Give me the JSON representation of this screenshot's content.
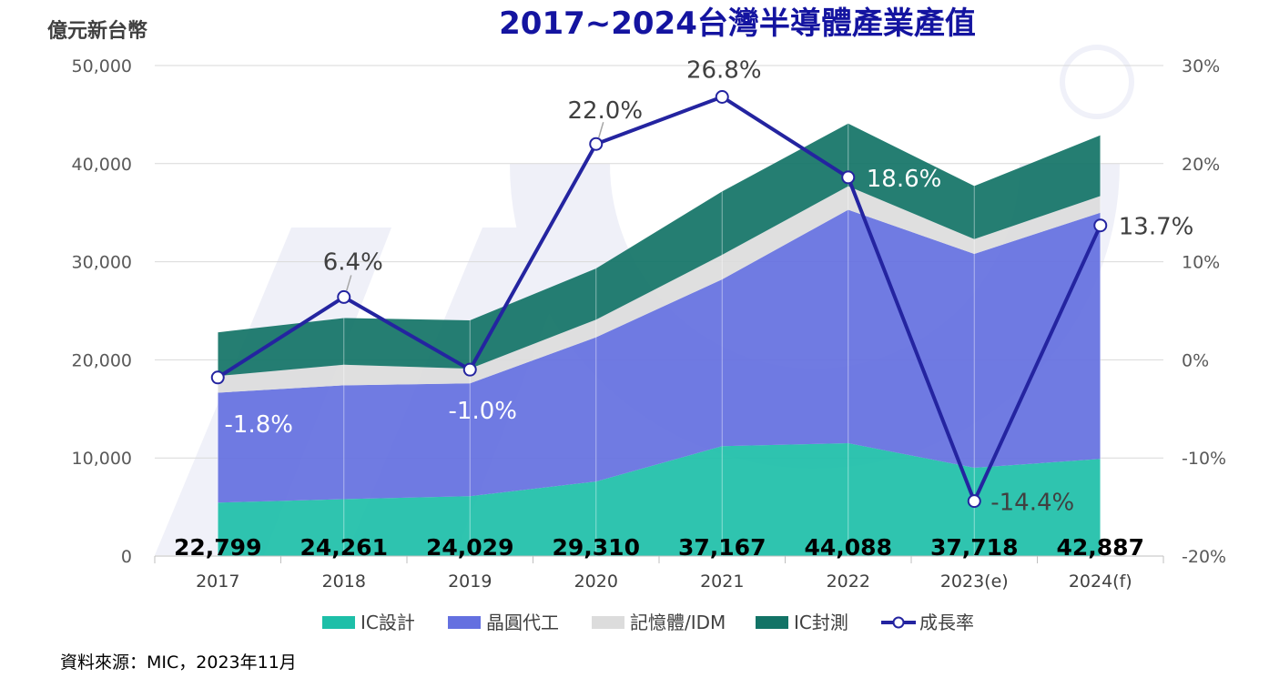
{
  "chart_data": {
    "type": "area",
    "title": "2017~2024台灣半導體產業產值",
    "y_unit_label": "億元新台幣",
    "categories": [
      "2017",
      "2018",
      "2019",
      "2020",
      "2021",
      "2022",
      "2023(e)",
      "2024(f)"
    ],
    "ylim": [
      0,
      50000
    ],
    "y_ticks": [
      "0",
      "10,000",
      "20,000",
      "30,000",
      "40,000",
      "50,000"
    ],
    "y2lim": [
      -20,
      30
    ],
    "y2_ticks": [
      "-20%",
      "-10%",
      "0%",
      "10%",
      "20%",
      "30%"
    ],
    "stacked": true,
    "series": [
      {
        "name": "IC設計",
        "kind": "area",
        "color": "#1dbfa8",
        "values": [
          5450,
          5800,
          6100,
          7600,
          11200,
          11500,
          9000,
          9900
        ]
      },
      {
        "name": "晶圓代工",
        "kind": "area",
        "color": "#6470e0",
        "values": [
          11200,
          11600,
          11500,
          14700,
          17000,
          23800,
          21800,
          25100
        ]
      },
      {
        "name": "記憶體/IDM",
        "kind": "area",
        "color": "#dcdcdc",
        "values": [
          1700,
          2100,
          1500,
          1800,
          2500,
          2400,
          1500,
          1700
        ]
      },
      {
        "name": "IC封測",
        "kind": "area",
        "color": "#127366",
        "values": [
          4449,
          4761,
          4929,
          5210,
          6467,
          6388,
          5418,
          6187
        ]
      },
      {
        "name": "成長率",
        "kind": "line",
        "axis": "right",
        "color": "#2424a0",
        "values": [
          -1.8,
          6.4,
          -1.0,
          22.0,
          26.8,
          18.6,
          -14.4,
          13.7
        ]
      }
    ],
    "totals": [
      "22,799",
      "24,261",
      "24,029",
      "29,310",
      "37,167",
      "44,088",
      "37,718",
      "42,887"
    ],
    "rate_labels": [
      "-1.8%",
      "6.4%",
      "-1.0%",
      "22.0%",
      "26.8%",
      "18.6%",
      "-14.4%",
      "13.7%"
    ],
    "grid": true,
    "legend_position": "bottom"
  },
  "source": "資料來源：MIC，2023年11月"
}
